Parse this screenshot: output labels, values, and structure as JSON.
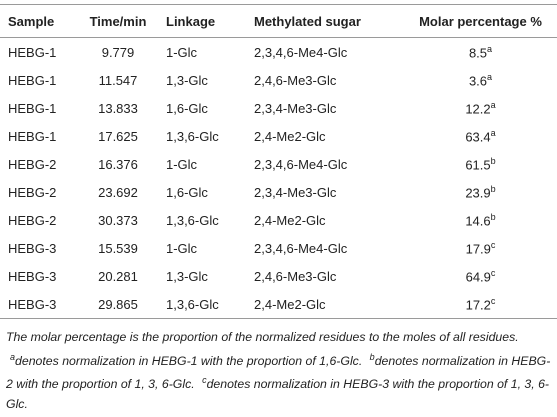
{
  "table": {
    "header": [
      "Sample",
      "Time/min",
      "Linkage",
      "Methylated sugar",
      "Molar percentage %"
    ],
    "rows": [
      [
        "HEBG-1",
        "9.779",
        "1-Glc",
        "2,3,4,6-Me4-Glc",
        {
          "value": "8.5",
          "note": "a"
        }
      ],
      [
        "HEBG-1",
        "11.547",
        "1,3-Glc",
        "2,4,6-Me3-Glc",
        {
          "value": "3.6",
          "note": "a"
        }
      ],
      [
        "HEBG-1",
        "13.833",
        "1,6-Glc",
        "2,3,4-Me3-Glc",
        {
          "value": "12.2",
          "note": "a"
        }
      ],
      [
        "HEBG-1",
        "17.625",
        "1,3,6-Glc",
        "2,4-Me2-Glc",
        {
          "value": "63.4",
          "note": "a"
        }
      ],
      [
        "HEBG-2",
        "16.376",
        "1-Glc",
        "2,3,4,6-Me4-Glc",
        {
          "value": "61.5",
          "note": "b"
        }
      ],
      [
        "HEBG-2",
        "23.692",
        "1,6-Glc",
        "2,3,4-Me3-Glc",
        {
          "value": "23.9",
          "note": "b"
        }
      ],
      [
        "HEBG-2",
        "30.373",
        "1,3,6-Glc",
        "2,4-Me2-Glc",
        {
          "value": "14.6",
          "note": "b"
        }
      ],
      [
        "HEBG-3",
        "15.539",
        "1-Glc",
        "2,3,4,6-Me4-Glc",
        {
          "value": "17.9",
          "note": "c"
        }
      ],
      [
        "HEBG-3",
        "20.281",
        "1,3-Glc",
        "2,4,6-Me3-Glc",
        {
          "value": "64.9",
          "note": "c"
        }
      ],
      [
        "HEBG-3",
        "29.865",
        "1,3,6-Glc",
        "2,4-Me2-Glc",
        {
          "value": "17.2",
          "note": "c"
        }
      ]
    ]
  },
  "footnote": {
    "text": "The molar percentage is the proportion of the normalized residues to the moles of all residues.",
    "notes": [
      {
        "mark": "a",
        "text": "denotes normalization in HEBG-1 with the proportion of 1,6-Glc."
      },
      {
        "mark": "b",
        "text": "denotes normalization in HEBG-2 with the proportion of 1, 3, 6-Glc."
      },
      {
        "mark": "c",
        "text": "denotes normalization in HEBG-3 with the proportion of 1, 3, 6-Glc."
      }
    ]
  }
}
